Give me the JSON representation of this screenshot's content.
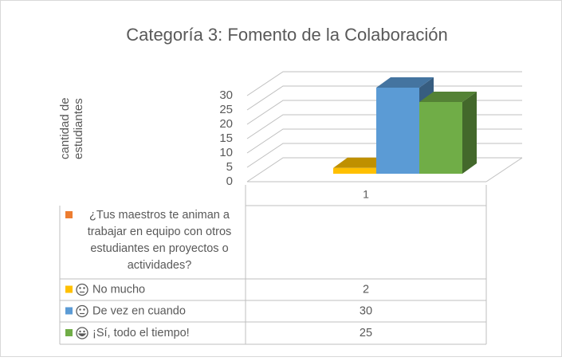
{
  "chart_data": {
    "type": "bar3d",
    "title": "Categoría 3: Fomento de la Colaboración",
    "y_label": "cantidad de estudiantes",
    "categories": [
      "1"
    ],
    "question": {
      "name": "¿Tus maestros te animan a trabajar en equipo con otros estudiantes en proyectos o actividades?",
      "color": "#ed7d31"
    },
    "series": [
      {
        "name": "No mucho",
        "color": "#ffc000",
        "values": [
          2
        ]
      },
      {
        "name": "De vez en cuando",
        "color": "#5b9bd5",
        "values": [
          30
        ]
      },
      {
        "name": "¡Sí, todo el tiempo!",
        "color": "#70ad47",
        "values": [
          25
        ]
      }
    ],
    "ylim": [
      0,
      30
    ],
    "yticks": [
      0,
      5,
      10,
      15,
      20,
      25,
      30
    ],
    "grid": true,
    "data_table": true
  }
}
